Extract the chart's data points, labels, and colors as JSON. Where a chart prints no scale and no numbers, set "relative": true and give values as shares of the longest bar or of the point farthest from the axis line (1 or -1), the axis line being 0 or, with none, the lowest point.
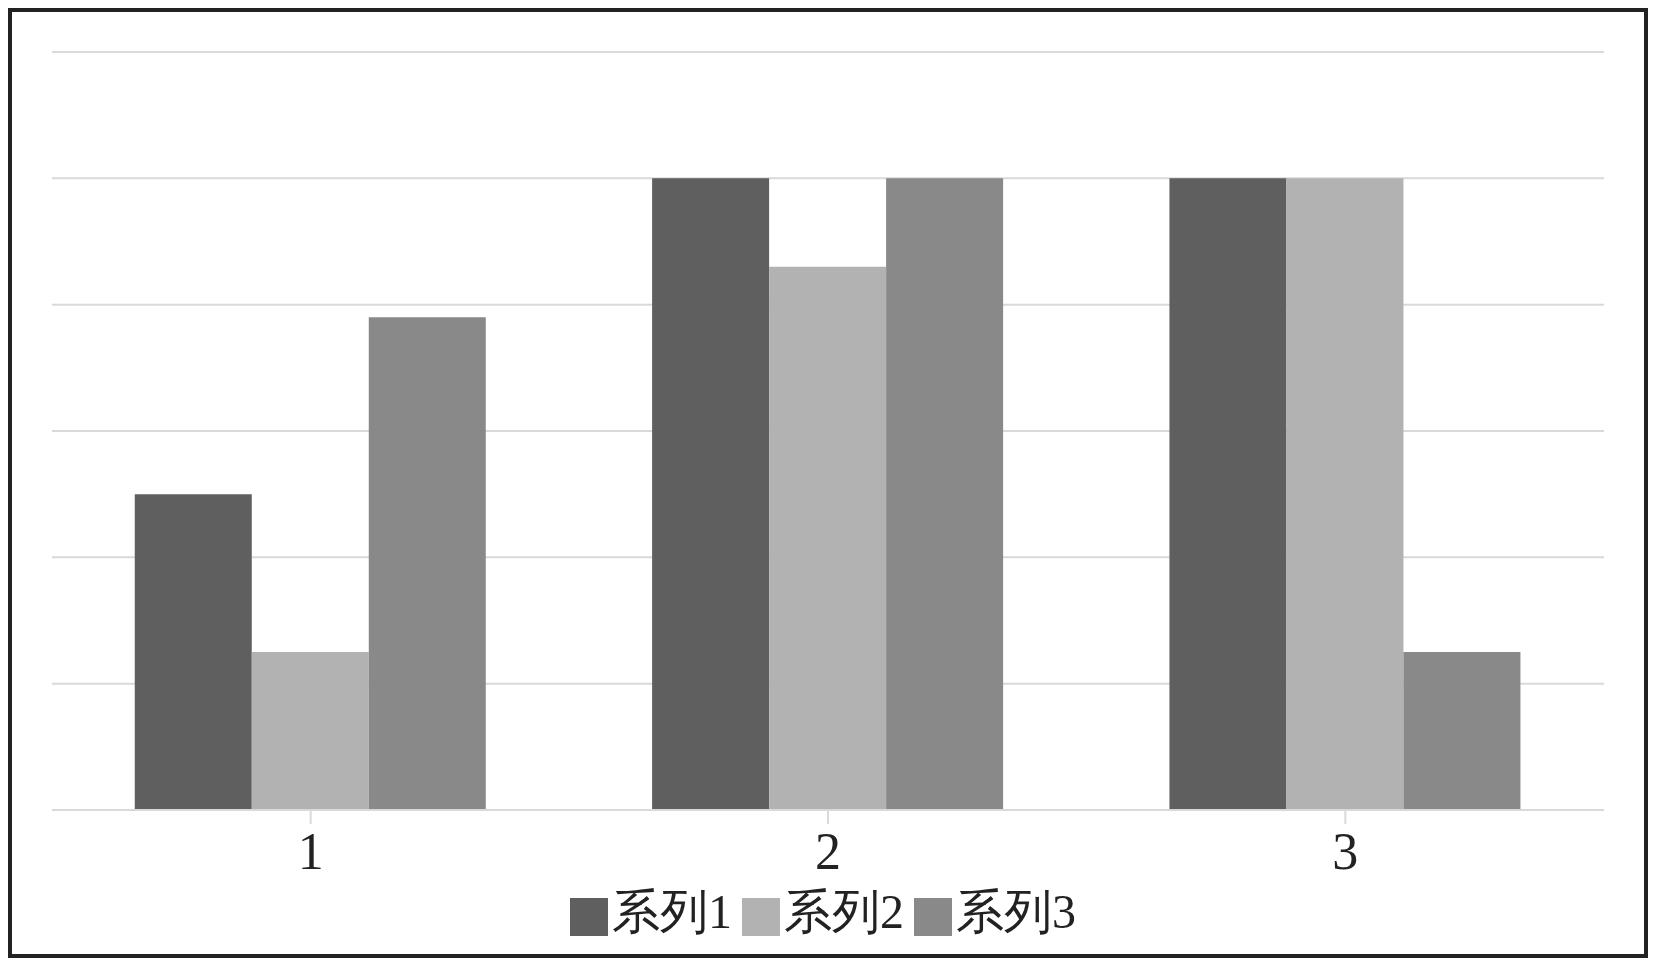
{
  "chart_data": {
    "type": "bar",
    "categories": [
      "1",
      "2",
      "3"
    ],
    "relative": true,
    "grid": "y",
    "legend": "bottom",
    "series": [
      {
        "name": "系列1",
        "color": "#5f5f5f",
        "values": [
          0.5,
          1,
          1
        ]
      },
      {
        "name": "系列2",
        "color": "#b2b2b2",
        "values": [
          0.25,
          0.86,
          1
        ]
      },
      {
        "name": "系列3",
        "color": "#898989",
        "values": [
          0.78,
          1,
          0.25
        ]
      }
    ]
  }
}
